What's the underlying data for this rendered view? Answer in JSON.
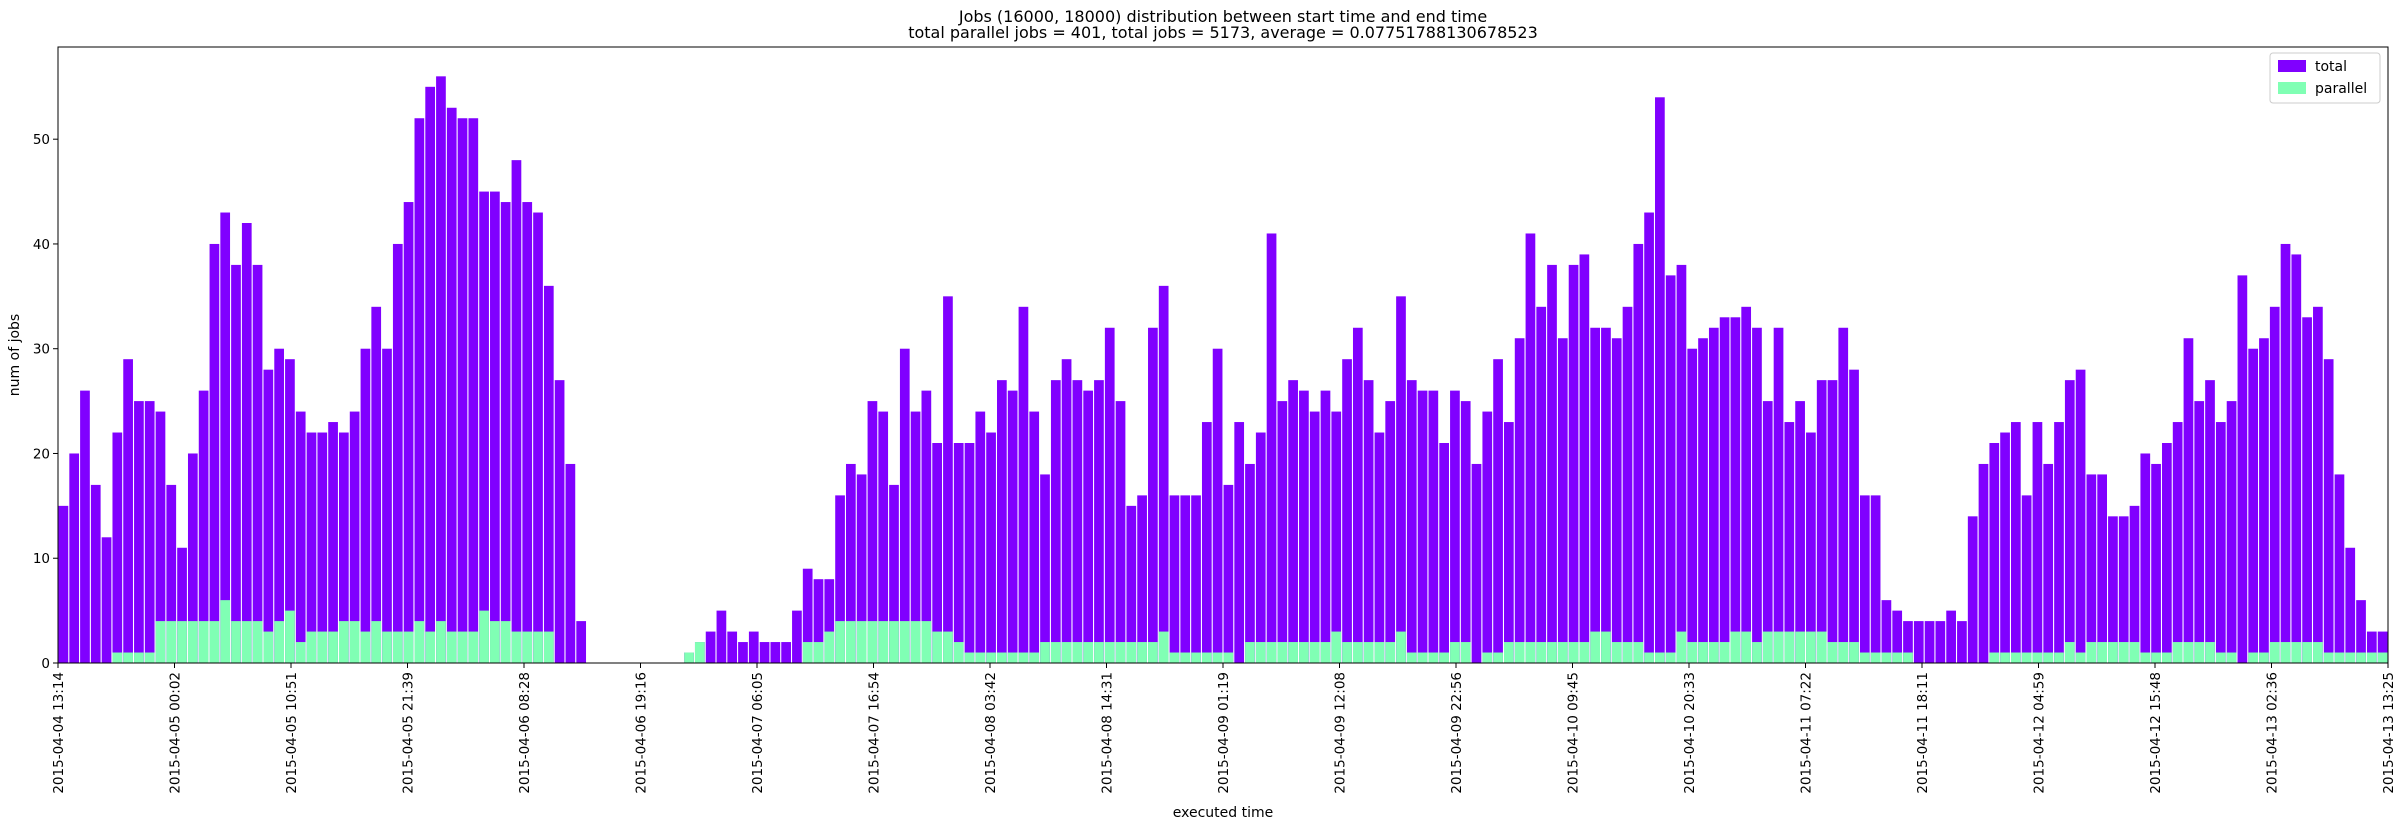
{
  "chart_data": {
    "type": "bar",
    "title": "Jobs (16000, 18000) distribution between start time and end time",
    "subtitle": "total parallel jobs = 401, total jobs = 5173, average = 0.07751788130678523",
    "xlabel": "executed time",
    "ylabel": "num of jobs",
    "ylim": [
      0,
      58.8
    ],
    "yticks": [
      "0",
      "10",
      "20",
      "30",
      "40",
      "50"
    ],
    "x_ticks": [
      "2015-04-04 13:14",
      "2015-04-05 00:02",
      "2015-04-05 10:51",
      "2015-04-05 21:39",
      "2015-04-06 08:28",
      "2015-04-06 19:16",
      "2015-04-07 06:05",
      "2015-04-07 16:54",
      "2015-04-08 03:42",
      "2015-04-08 14:31",
      "2015-04-09 01:19",
      "2015-04-09 12:08",
      "2015-04-09 22:56",
      "2015-04-10 09:45",
      "2015-04-10 20:33",
      "2015-04-11 07:22",
      "2015-04-11 18:11",
      "2015-04-12 04:59",
      "2015-04-12 15:48",
      "2015-04-13 02:36",
      "2015-04-13 13:25"
    ],
    "grid": false,
    "legend_position": "top-right",
    "colors": {
      "total": "#8000ff",
      "parallel": "#80ffb4"
    },
    "series": [
      {
        "name": "total",
        "values": [
          15,
          20,
          26,
          17,
          12,
          22,
          29,
          25,
          25,
          24,
          17,
          11,
          20,
          26,
          40,
          43,
          38,
          42,
          38,
          28,
          30,
          29,
          24,
          22,
          22,
          23,
          22,
          24,
          30,
          34,
          30,
          40,
          44,
          52,
          55,
          56,
          53,
          52,
          52,
          45,
          45,
          44,
          48,
          44,
          43,
          36,
          27,
          19,
          4,
          0,
          0,
          0,
          0,
          0,
          0,
          0,
          0,
          0,
          1,
          2,
          3,
          5,
          3,
          2,
          3,
          2,
          2,
          2,
          5,
          9,
          8,
          8,
          16,
          19,
          18,
          25,
          24,
          17,
          30,
          24,
          26,
          21,
          35,
          21,
          21,
          24,
          22,
          27,
          26,
          34,
          24,
          18,
          27,
          29,
          27,
          26,
          27,
          32,
          25,
          15,
          16,
          32,
          36,
          16,
          16,
          16,
          23,
          30,
          17,
          23,
          19,
          22,
          41,
          25,
          27,
          26,
          24,
          26,
          24,
          29,
          32,
          27,
          22,
          25,
          35,
          27,
          26,
          26,
          21,
          26,
          25,
          19,
          24,
          29,
          23,
          31,
          41,
          34,
          38,
          31,
          38,
          39,
          32,
          32,
          31,
          34,
          40,
          43,
          54,
          37,
          38,
          30,
          31,
          32,
          33,
          33,
          34,
          32,
          25,
          32,
          23,
          25,
          22,
          27,
          27,
          32,
          28,
          16,
          16,
          6,
          5,
          4,
          4,
          4,
          4,
          5,
          4,
          14,
          19,
          21,
          22,
          23,
          16,
          23,
          19,
          23,
          27,
          28,
          18,
          18,
          14,
          14,
          15,
          20,
          19,
          21,
          23,
          31,
          25,
          27,
          23,
          25,
          37,
          30,
          31,
          34,
          40,
          39,
          33,
          34,
          29,
          18,
          11,
          6,
          3,
          3
        ]
      },
      {
        "name": "parallel",
        "values": [
          0,
          0,
          0,
          0,
          0,
          1,
          1,
          1,
          1,
          4,
          4,
          4,
          4,
          4,
          4,
          6,
          4,
          4,
          4,
          3,
          4,
          5,
          2,
          3,
          3,
          3,
          4,
          4,
          3,
          4,
          3,
          3,
          3,
          4,
          3,
          4,
          3,
          3,
          3,
          5,
          4,
          4,
          3,
          3,
          3,
          3,
          0,
          0,
          0,
          0,
          0,
          0,
          0,
          0,
          0,
          0,
          0,
          0,
          1,
          2,
          0,
          0,
          0,
          0,
          0,
          0,
          0,
          0,
          0,
          2,
          2,
          3,
          4,
          4,
          4,
          4,
          4,
          4,
          4,
          4,
          4,
          3,
          3,
          2,
          1,
          1,
          1,
          1,
          1,
          1,
          1,
          2,
          2,
          2,
          2,
          2,
          2,
          2,
          2,
          2,
          2,
          2,
          3,
          1,
          1,
          1,
          1,
          1,
          1,
          0,
          2,
          2,
          2,
          2,
          2,
          2,
          2,
          2,
          3,
          2,
          2,
          2,
          2,
          2,
          3,
          1,
          1,
          1,
          1,
          2,
          2,
          0,
          1,
          1,
          2,
          2,
          2,
          2,
          2,
          2,
          2,
          2,
          3,
          3,
          2,
          2,
          2,
          1,
          1,
          1,
          3,
          2,
          2,
          2,
          2,
          3,
          3,
          2,
          3,
          3,
          3,
          3,
          3,
          3,
          2,
          2,
          2,
          1,
          1,
          1,
          1,
          1,
          0,
          0,
          0,
          0,
          0,
          0,
          0,
          1,
          1,
          1,
          1,
          1,
          1,
          1,
          2,
          1,
          2,
          2,
          2,
          2,
          2,
          1,
          1,
          1,
          2,
          2,
          2,
          2,
          1,
          1,
          0,
          1,
          1,
          2,
          2,
          2,
          2,
          2,
          1,
          1,
          1,
          1,
          1,
          1,
          0,
          0
        ]
      }
    ]
  }
}
